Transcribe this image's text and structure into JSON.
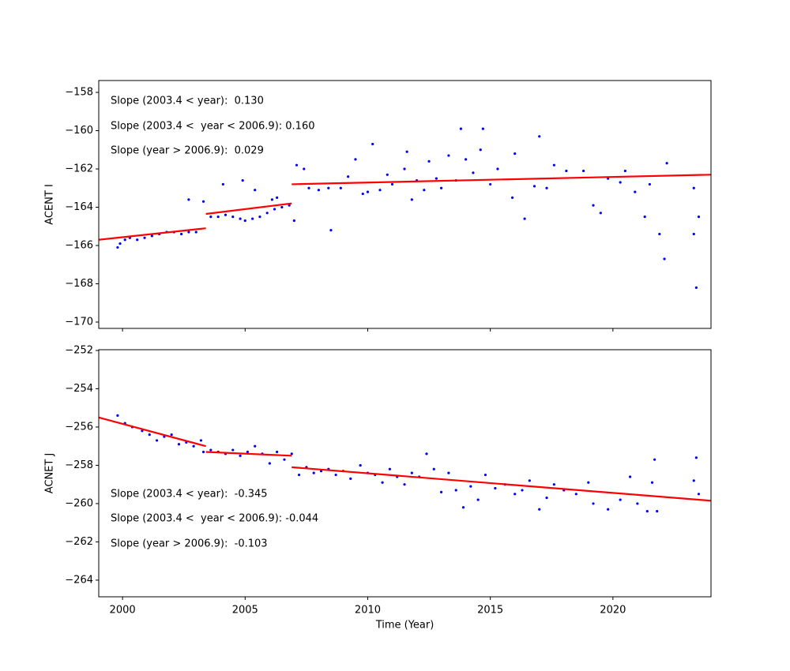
{
  "chart_data": [
    {
      "type": "scatter",
      "ylabel": "ACENT I",
      "annotations": [
        "Slope (2003.4 < year):  0.130",
        "Slope (2003.4 <  year < 2006.9): 0.160",
        "Slope (year > 2006.9):  0.029"
      ],
      "xlim": [
        1999.03,
        2024.0
      ],
      "ylim": [
        -157.38,
        -170.33
      ],
      "xticks": [
        2000,
        2005,
        2010,
        2015,
        2020
      ],
      "xtick_labels": false,
      "yticks": [
        {
          "value": -158,
          "label": "−158"
        },
        {
          "value": -160,
          "label": "−160"
        },
        {
          "value": -162,
          "label": "−162"
        },
        {
          "value": -164,
          "label": "−164"
        },
        {
          "value": -166,
          "label": "−166"
        },
        {
          "value": -168,
          "label": "−168"
        },
        {
          "value": -170,
          "label": "−170"
        }
      ],
      "series": [
        {
          "type": "scatter",
          "color": "#0000ff",
          "x": [
            1999.8,
            1999.9,
            2000.1,
            2000.3,
            2000.6,
            2000.9,
            2001.2,
            2001.5,
            2001.8,
            2002.1,
            2002.4,
            2002.7,
            2003.0,
            2002.7,
            2003.3,
            2003.6,
            2003.9,
            2004.2,
            2004.5,
            2004.8,
            2005.0,
            2005.3,
            2005.6,
            2005.9,
            2006.2,
            2006.5,
            2006.8,
            2004.1,
            2004.9,
            2005.4,
            2006.1,
            2006.3,
            2007.0,
            2007.1,
            2007.4,
            2007.6,
            2008.0,
            2008.4,
            2008.5,
            2008.9,
            2009.2,
            2009.5,
            2009.8,
            2010.0,
            2010.2,
            2010.5,
            2010.8,
            2011.0,
            2011.5,
            2011.6,
            2011.8,
            2012.0,
            2012.3,
            2012.5,
            2012.8,
            2013.0,
            2013.3,
            2013.6,
            2013.8,
            2014.0,
            2014.3,
            2014.6,
            2014.7,
            2015.0,
            2015.3,
            2015.9,
            2016.0,
            2016.4,
            2016.8,
            2017.0,
            2017.3,
            2017.6,
            2018.1,
            2018.8,
            2019.2,
            2019.5,
            2019.8,
            2020.3,
            2020.5,
            2020.9,
            2021.3,
            2021.5,
            2021.9,
            2022.1,
            2022.2,
            2023.3,
            2023.3,
            2023.4,
            2023.5
          ],
          "values": [
            -166.1,
            -165.9,
            -165.7,
            -165.6,
            -165.7,
            -165.6,
            -165.5,
            -165.4,
            -165.3,
            -165.3,
            -165.4,
            -165.3,
            -165.3,
            -163.6,
            -163.7,
            -164.5,
            -164.5,
            -164.4,
            -164.5,
            -164.6,
            -164.7,
            -164.6,
            -164.5,
            -164.3,
            -164.1,
            -164.0,
            -163.9,
            -162.8,
            -162.6,
            -163.1,
            -163.6,
            -163.5,
            -164.7,
            -161.8,
            -162.0,
            -163.0,
            -163.1,
            -163.0,
            -165.2,
            -163.0,
            -162.4,
            -161.5,
            -163.3,
            -163.2,
            -160.7,
            -163.1,
            -162.3,
            -162.8,
            -162.0,
            -161.1,
            -163.6,
            -162.6,
            -163.1,
            -161.6,
            -162.5,
            -163.0,
            -161.3,
            -162.6,
            -159.9,
            -161.5,
            -162.2,
            -161.0,
            -159.9,
            -162.8,
            -162.0,
            -163.5,
            -161.2,
            -164.6,
            -162.9,
            -160.3,
            -163.0,
            -161.8,
            -162.1,
            -162.1,
            -163.9,
            -164.3,
            -162.5,
            -162.7,
            -162.1,
            -163.2,
            -164.5,
            -162.8,
            -165.4,
            -166.7,
            -161.7,
            -163.0,
            -165.4,
            -168.2,
            -164.5
          ]
        },
        {
          "type": "line",
          "color": "#ff0000",
          "x": [
            1999.03,
            2003.4
          ],
          "values": [
            -165.7,
            -165.1
          ]
        },
        {
          "type": "line",
          "color": "#ff0000",
          "x": [
            2003.4,
            2006.9
          ],
          "values": [
            -164.35,
            -163.8
          ]
        },
        {
          "type": "line",
          "color": "#ff0000",
          "x": [
            2006.9,
            2024.0
          ],
          "values": [
            -162.8,
            -162.3
          ]
        }
      ]
    },
    {
      "type": "scatter",
      "ylabel": "ACNET J",
      "xlabel": "Time (Year)",
      "annotations": [
        "Slope (2003.4 < year):  -0.345",
        "Slope (2003.4 <  year < 2006.9): -0.044",
        "Slope (year > 2006.9):  -0.103"
      ],
      "xlim": [
        1999.03,
        2024.0
      ],
      "ylim": [
        -251.96,
        -264.87
      ],
      "xticks": [
        2000,
        2005,
        2010,
        2015,
        2020
      ],
      "xtick_labels": true,
      "yticks": [
        {
          "value": -252,
          "label": "−252"
        },
        {
          "value": -254,
          "label": "−254"
        },
        {
          "value": -256,
          "label": "−256"
        },
        {
          "value": -258,
          "label": "−258"
        },
        {
          "value": -260,
          "label": "−260"
        },
        {
          "value": -262,
          "label": "−262"
        },
        {
          "value": -264,
          "label": "−264"
        }
      ],
      "series": [
        {
          "type": "scatter",
          "color": "#0000ff",
          "x": [
            1999.8,
            2000.1,
            2000.4,
            2000.8,
            2001.1,
            2001.4,
            2001.7,
            2002.0,
            2002.3,
            2002.6,
            2002.9,
            2003.2,
            2003.3,
            2003.6,
            2003.9,
            2004.2,
            2004.5,
            2004.8,
            2005.1,
            2005.4,
            2005.7,
            2006.0,
            2006.3,
            2006.6,
            2006.9,
            2007.2,
            2007.5,
            2007.8,
            2008.1,
            2008.4,
            2008.7,
            2009.0,
            2009.3,
            2009.7,
            2010.0,
            2010.3,
            2010.6,
            2010.9,
            2011.2,
            2011.5,
            2011.8,
            2012.1,
            2012.4,
            2012.7,
            2013.0,
            2013.3,
            2013.6,
            2013.9,
            2014.2,
            2014.5,
            2014.8,
            2015.2,
            2015.6,
            2016.0,
            2016.3,
            2016.6,
            2017.0,
            2017.3,
            2017.6,
            2018.0,
            2018.5,
            2019.0,
            2019.2,
            2019.8,
            2020.3,
            2020.7,
            2021.0,
            2021.4,
            2021.6,
            2021.8,
            2021.7,
            2023.3,
            2023.4,
            2023.5
          ],
          "values": [
            -255.4,
            -255.8,
            -256.0,
            -256.2,
            -256.4,
            -256.7,
            -256.5,
            -256.4,
            -256.9,
            -256.8,
            -257.0,
            -256.7,
            -257.3,
            -257.2,
            -257.3,
            -257.4,
            -257.2,
            -257.5,
            -257.3,
            -257.0,
            -257.4,
            -257.9,
            -257.3,
            -257.7,
            -257.4,
            -258.5,
            -258.1,
            -258.4,
            -258.3,
            -258.2,
            -258.5,
            -258.3,
            -258.7,
            -258.0,
            -258.4,
            -258.5,
            -258.9,
            -258.2,
            -258.6,
            -259.0,
            -258.4,
            -258.6,
            -257.4,
            -258.2,
            -259.4,
            -258.4,
            -259.3,
            -260.2,
            -259.1,
            -259.8,
            -258.5,
            -259.2,
            -259.0,
            -259.5,
            -259.3,
            -258.8,
            -260.3,
            -259.7,
            -259.0,
            -259.3,
            -259.5,
            -258.9,
            -260.0,
            -260.3,
            -259.8,
            -258.6,
            -260.0,
            -260.4,
            -258.9,
            -260.4,
            -257.7,
            -258.8,
            -257.6,
            -259.5
          ]
        },
        {
          "type": "line",
          "color": "#ff0000",
          "x": [
            1999.03,
            2003.4
          ],
          "values": [
            -255.5,
            -257.0
          ]
        },
        {
          "type": "line",
          "color": "#ff0000",
          "x": [
            2003.4,
            2006.9
          ],
          "values": [
            -257.3,
            -257.5
          ]
        },
        {
          "type": "line",
          "color": "#ff0000",
          "x": [
            2006.9,
            2024.0
          ],
          "values": [
            -258.1,
            -259.85
          ]
        }
      ]
    }
  ]
}
